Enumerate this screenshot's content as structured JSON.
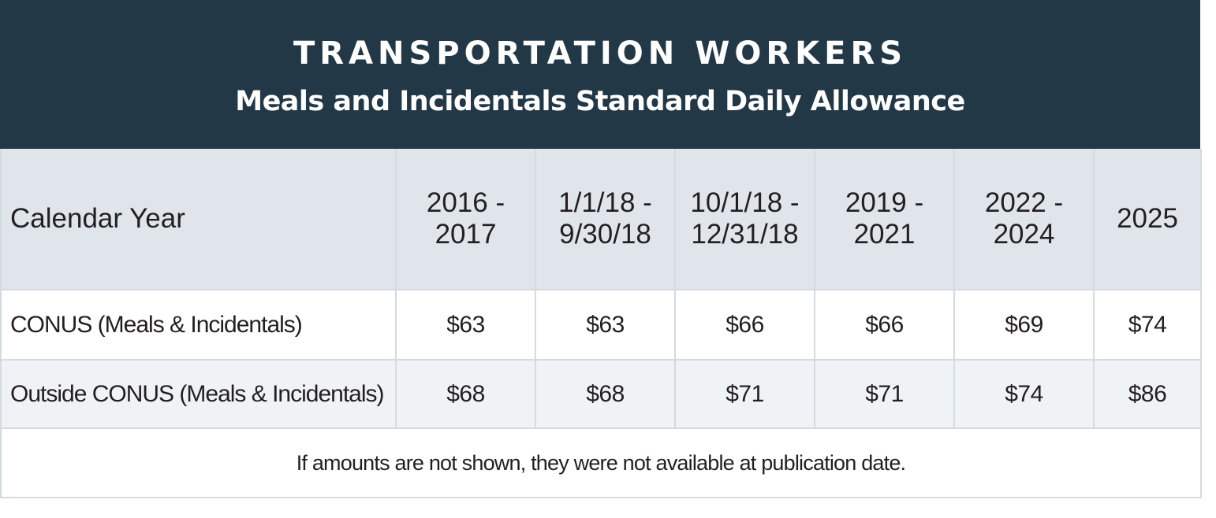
{
  "header": {
    "title": "TRANSPORTATION WORKERS",
    "subtitle": "Meals and Incidentals Standard Daily Allowance"
  },
  "table": {
    "columns": [
      {
        "label": "Calendar Year",
        "line1": "Calendar Year",
        "line2": ""
      },
      {
        "label": "2016 - 2017",
        "line1": "2016 -",
        "line2": "2017"
      },
      {
        "label": "1/1/18 - 9/30/18",
        "line1": "1/1/18 -",
        "line2": "9/30/18"
      },
      {
        "label": "10/1/18 - 12/31/18",
        "line1": "10/1/18 -",
        "line2": "12/31/18"
      },
      {
        "label": "2019 - 2021",
        "line1": "2019 -",
        "line2": "2021"
      },
      {
        "label": "2022 - 2024",
        "line1": "2022 -",
        "line2": "2024"
      },
      {
        "label": "2025",
        "line1": "2025",
        "line2": ""
      }
    ],
    "rows": [
      {
        "label": "CONUS (Meals & Incidentals)",
        "values": [
          "$63",
          "$63",
          "$66",
          "$66",
          "$69",
          "$74"
        ]
      },
      {
        "label": "Outside CONUS (Meals & Incidentals)",
        "values": [
          "$68",
          "$68",
          "$71",
          "$71",
          "$74",
          "$86"
        ]
      }
    ],
    "footnote": "If amounts are not shown, they were not available at publication date."
  },
  "colors": {
    "banner": "#233847",
    "header_row": "#dfe5eb",
    "row_alt": "#f0f3f6",
    "border": "#d3dae0",
    "text": "#231f20"
  }
}
